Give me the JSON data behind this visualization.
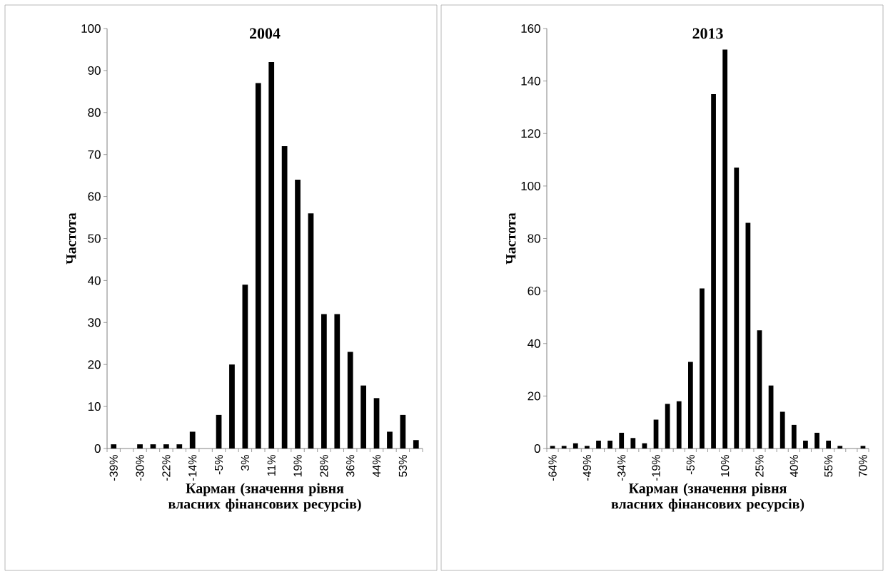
{
  "chart_data": [
    {
      "type": "bar",
      "title": "2004",
      "xlabel": "Карман (значення рівня власних фінансових ресурсів)",
      "ylabel": "Частота",
      "categories": [
        "-39%",
        null,
        "-30%",
        null,
        "-22%",
        null,
        "-14%",
        null,
        "-5%",
        null,
        "3%",
        null,
        "11%",
        null,
        "19%",
        null,
        "28%",
        null,
        "36%",
        null,
        "44%",
        null,
        "53%",
        null
      ],
      "values": [
        1,
        0,
        1,
        1,
        1,
        1,
        4,
        0,
        8,
        20,
        39,
        87,
        92,
        72,
        64,
        56,
        32,
        32,
        23,
        15,
        12,
        4,
        8,
        2
      ],
      "color": "#000000",
      "ylim": [
        0,
        100
      ],
      "yticks": [
        0,
        10,
        20,
        30,
        40,
        50,
        60,
        70,
        80,
        90,
        100
      ]
    },
    {
      "type": "bar",
      "title": "2013",
      "xlabel": "Карман (значення рівня власних фінансових ресурсів)",
      "ylabel": "Частота",
      "categories": [
        "-64%",
        null,
        null,
        "-49%",
        null,
        null,
        "-34%",
        null,
        null,
        "-19%",
        null,
        null,
        "-5%",
        null,
        null,
        "10%",
        null,
        null,
        "25%",
        null,
        null,
        "40%",
        null,
        null,
        "55%",
        null,
        null,
        "70%"
      ],
      "values": [
        1,
        1,
        2,
        1,
        3,
        3,
        6,
        4,
        2,
        11,
        17,
        18,
        33,
        61,
        135,
        152,
        107,
        86,
        45,
        24,
        14,
        9,
        3,
        6,
        3,
        1,
        0,
        1
      ],
      "color": "#000000",
      "ylim": [
        0,
        160
      ],
      "yticks": [
        0,
        20,
        40,
        60,
        80,
        100,
        120,
        140,
        160
      ]
    }
  ]
}
